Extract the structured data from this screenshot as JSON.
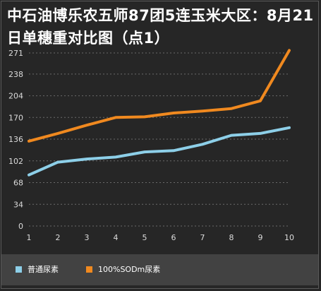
{
  "title": {
    "line1": "中石油博乐农五师87团5连玉米大区：8月21",
    "line2": "日单穗重对比图（点1）"
  },
  "colors": {
    "background": "#262626",
    "legend_band": "#424242",
    "gridline": "#6a6a6a",
    "axis_text": "#dcdcdc",
    "series": [
      "#8dcfe8",
      "#f0891f"
    ]
  },
  "chart_data": {
    "type": "line",
    "x": [
      1,
      2,
      3,
      4,
      5,
      6,
      7,
      8,
      9,
      10
    ],
    "y_ticks": [
      0,
      34,
      68,
      102,
      136,
      170,
      204,
      238,
      271
    ],
    "ylim": [
      0,
      271
    ],
    "grid": "horizontal dashed",
    "legend_position": "bottom",
    "series": [
      {
        "name": "普通尿素",
        "values": [
          80,
          100,
          105,
          108,
          116,
          118,
          128,
          142,
          145,
          154
        ]
      },
      {
        "name": "100%SODm尿素",
        "values": [
          133,
          145,
          158,
          170,
          171,
          177,
          180,
          184,
          196,
          275
        ]
      }
    ]
  }
}
